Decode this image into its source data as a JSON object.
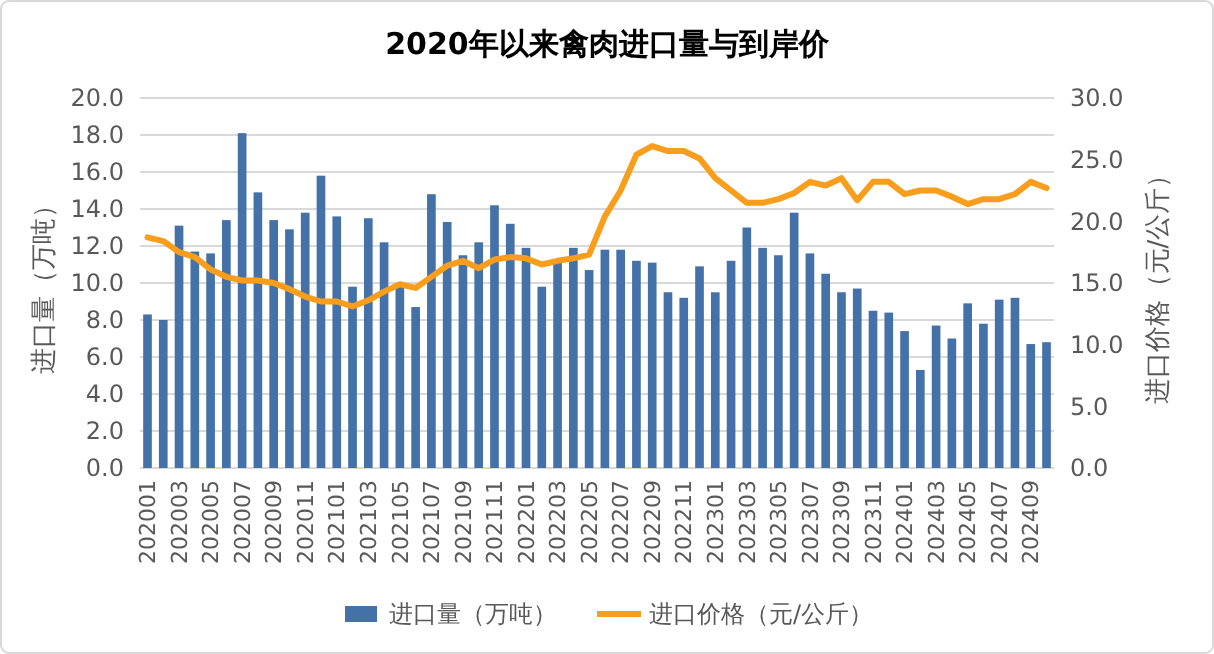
{
  "chart_data": {
    "type": "bar",
    "title": "2020年以来禽肉进口量与到岸价",
    "ylabel": "进口量（万吨）",
    "y2label": "进口价格（元/公斤）",
    "categories": [
      "202001",
      null,
      "202003",
      null,
      "202005",
      null,
      "202007",
      null,
      "202009",
      null,
      "202011",
      null,
      "202101",
      null,
      "202103",
      null,
      "202105",
      null,
      "202107",
      null,
      "202109",
      null,
      "202111",
      null,
      "202201",
      null,
      "202203",
      null,
      "202205",
      null,
      "202207",
      null,
      "202209",
      null,
      "202211",
      null,
      "202301",
      null,
      "202303",
      null,
      "202305",
      null,
      "202307",
      null,
      "202309",
      null,
      "202311",
      null,
      "202401",
      null,
      "202403",
      null,
      "202405",
      null,
      "202407",
      null,
      "202409",
      null
    ],
    "series": [
      {
        "name": "进口量（万吨）",
        "color": "#4472a8",
        "values": [
          8.3,
          8.0,
          13.1,
          11.7,
          11.6,
          13.4,
          18.1,
          14.9,
          13.4,
          12.9,
          13.8,
          15.8,
          13.6,
          9.8,
          13.5,
          12.2,
          9.9,
          8.7,
          14.8,
          13.3,
          11.5,
          12.2,
          14.2,
          13.2,
          11.9,
          9.8,
          11.1,
          11.9,
          10.7,
          11.8,
          11.8,
          11.2,
          11.1,
          9.5,
          9.2,
          10.9,
          9.5,
          11.2,
          13.0,
          11.9,
          11.5,
          13.8,
          11.6,
          10.5,
          9.5,
          9.7,
          8.5,
          8.4,
          7.4,
          5.3,
          7.7,
          7.0,
          8.9,
          7.8,
          9.1,
          9.2,
          6.7,
          6.8
        ]
      },
      {
        "name": "进口价格（元/公斤）",
        "type": "line",
        "axis": "y2",
        "color": "#f99d1c",
        "values": [
          18.7,
          18.4,
          17.5,
          17.1,
          16.1,
          15.5,
          15.2,
          15.2,
          15.0,
          14.5,
          13.9,
          13.5,
          13.5,
          13.1,
          13.6,
          14.3,
          14.9,
          14.6,
          15.5,
          16.4,
          16.8,
          16.2,
          16.9,
          17.1,
          17.0,
          16.5,
          16.8,
          17.0,
          17.3,
          20.4,
          22.5,
          25.4,
          26.1,
          25.7,
          25.7,
          25.1,
          23.5,
          22.5,
          21.5,
          21.5,
          21.8,
          22.3,
          23.2,
          22.9,
          23.5,
          21.7,
          23.2,
          23.2,
          22.2,
          22.5,
          22.5,
          22.0,
          21.4,
          21.8,
          21.8,
          22.2,
          23.2,
          22.7
        ]
      }
    ],
    "ylim": [
      0,
      20
    ],
    "yticks": [
      {
        "value": 0,
        "label": "0.0"
      },
      {
        "value": 2,
        "label": "2.0"
      },
      {
        "value": 4,
        "label": "4.0"
      },
      {
        "value": 6,
        "label": "6.0"
      },
      {
        "value": 8,
        "label": "8.0"
      },
      {
        "value": 10,
        "label": "10.0"
      },
      {
        "value": 12,
        "label": "12.0"
      },
      {
        "value": 14,
        "label": "14.0"
      },
      {
        "value": 16,
        "label": "16.0"
      },
      {
        "value": 18,
        "label": "18.0"
      },
      {
        "value": 20,
        "label": "20.0"
      }
    ],
    "y2lim": [
      0,
      30
    ],
    "y2ticks": [
      {
        "value": 0,
        "label": "0.0"
      },
      {
        "value": 5,
        "label": "5.0"
      },
      {
        "value": 10,
        "label": "10.0"
      },
      {
        "value": 15,
        "label": "15.0"
      },
      {
        "value": 20,
        "label": "20.0"
      },
      {
        "value": 25,
        "label": "25.0"
      },
      {
        "value": 30,
        "label": "30.0"
      }
    ],
    "grid": "y",
    "legend": "bottom"
  }
}
